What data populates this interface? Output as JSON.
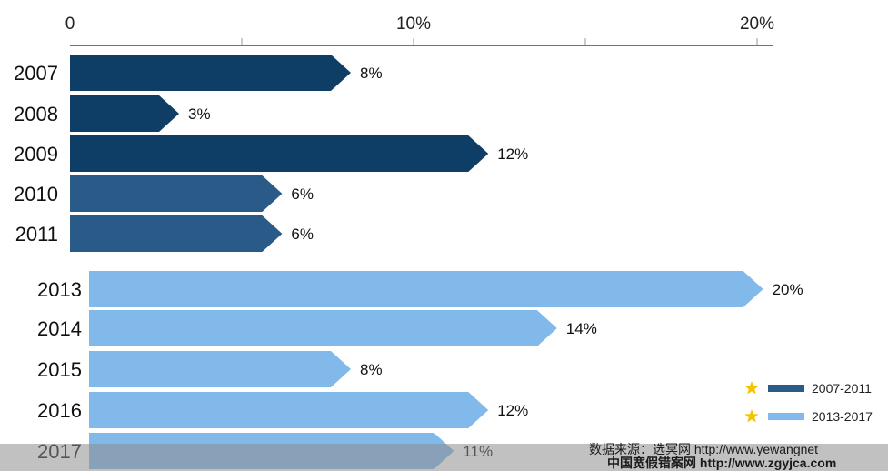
{
  "chart_data": {
    "type": "bar",
    "orientation": "horizontal",
    "xlim": [
      0,
      21
    ],
    "x_ticks": [
      {
        "value": 0,
        "label": "0"
      },
      {
        "value": 10,
        "label": "10%"
      },
      {
        "value": 20,
        "label": "20%"
      }
    ],
    "grid": true,
    "legend_position": "bottom-right",
    "series": [
      {
        "name": "2007-2011",
        "color": "#0e3e66",
        "color_alt": "#2a5a87",
        "categories": [
          "2007",
          "2008",
          "2009",
          "2010",
          "2011"
        ],
        "values": [
          8,
          3,
          12,
          6,
          6
        ],
        "labels": [
          "8%",
          "3%",
          "12%",
          "6%",
          "6%"
        ]
      },
      {
        "name": "2013-2017",
        "color": "#82b9eb",
        "categories": [
          "2013",
          "2014",
          "2015",
          "2016",
          "2017"
        ],
        "values": [
          20,
          14,
          8,
          12,
          11
        ],
        "labels": [
          "20%",
          "14%",
          "8%",
          "12%",
          "11%"
        ]
      }
    ],
    "legend": [
      {
        "label": "2007-2011",
        "color": "#2a5a87",
        "marker": "star-icon",
        "marker_color": "#f4c400"
      },
      {
        "label": "2013-2017",
        "color": "#82b9eb",
        "marker": "star-icon",
        "marker_color": "#f4c400"
      }
    ]
  },
  "source": {
    "line1": "数据来源：选冥网 http://www.yewangnet",
    "line2": "中国宽假错案网  http://www.zgyjca.com",
    "strip_color": "#8e8e8e"
  }
}
